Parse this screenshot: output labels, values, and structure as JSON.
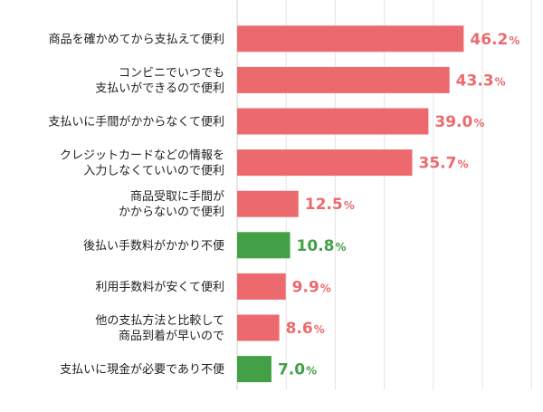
{
  "chart_data": {
    "type": "bar",
    "orientation": "horizontal",
    "categories": [
      [
        "商品を確かめてから支払えて便利"
      ],
      [
        "コンビニでいつでも",
        "支払いができるので便利"
      ],
      [
        "支払いに手間がかからなくて便利"
      ],
      [
        "クレジットカードなどの情報を",
        "入力しなくていいので便利"
      ],
      [
        "商品受取に手間が",
        "かからないので便利"
      ],
      [
        "後払い手数料がかかり不便"
      ],
      [
        "利用手数料が安くて便利"
      ],
      [
        "他の支払方法と比較して",
        "商品到着が早いので"
      ],
      [
        "支払いに現金が必要であり不便"
      ]
    ],
    "values": [
      46.2,
      43.3,
      39.0,
      35.7,
      12.5,
      10.8,
      9.9,
      8.6,
      7.0
    ],
    "value_labels": [
      "46.2",
      "43.3",
      "39.0",
      "35.7",
      "12.5",
      "10.8",
      "9.9",
      "8.6",
      "7.0"
    ],
    "unit": "%",
    "bar_colors": [
      "#ec6a6e",
      "#ec6a6e",
      "#ec6a6e",
      "#ec6a6e",
      "#ec6a6e",
      "#43a047",
      "#ec6a6e",
      "#ec6a6e",
      "#43a047"
    ],
    "label_colors": [
      "#ec6a6e",
      "#ec6a6e",
      "#ec6a6e",
      "#ec6a6e",
      "#ec6a6e",
      "#43a047",
      "#ec6a6e",
      "#ec6a6e",
      "#43a047"
    ],
    "xlim": [
      0,
      60
    ],
    "grid": true,
    "gridline_color": "#e4e4e4",
    "axis_color": "#d0d0d0"
  }
}
